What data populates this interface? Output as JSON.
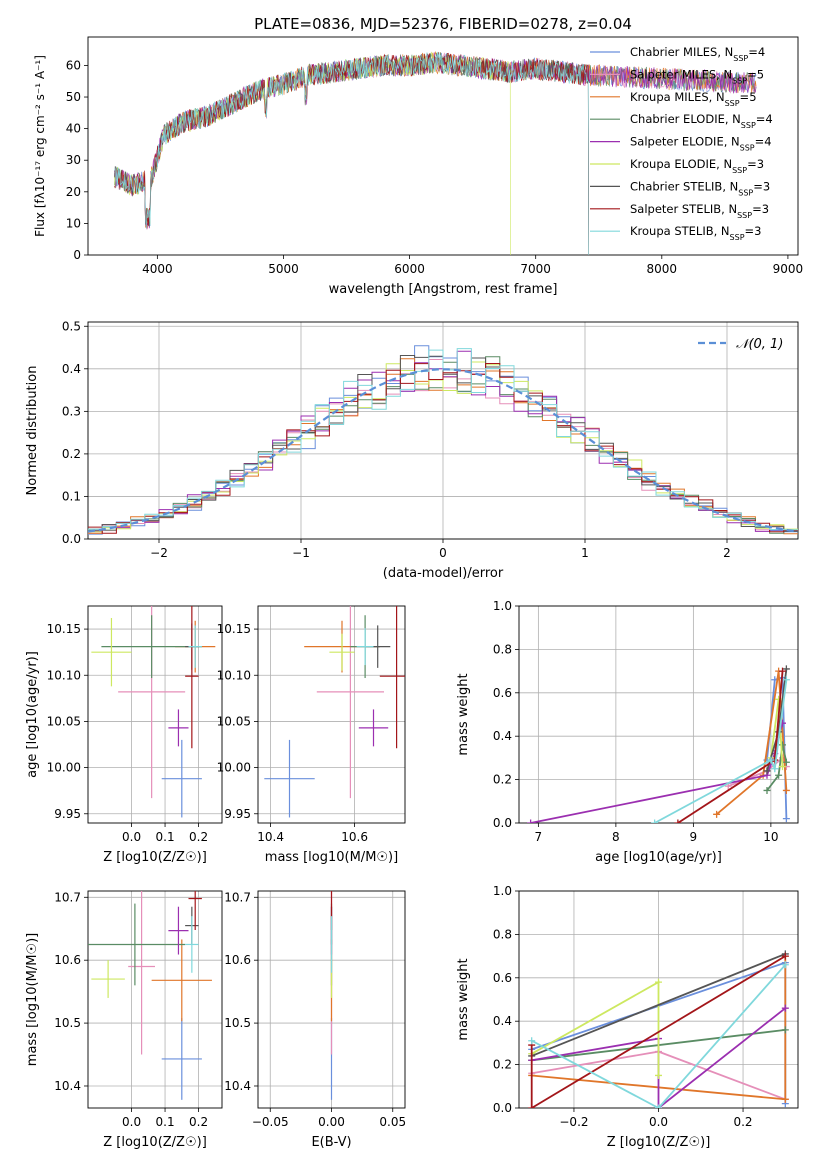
{
  "figure_title": "PLATE=0836, MJD=52376, FIBERID=0278, z=0.04",
  "series": [
    {
      "name": "Chabrier MILES",
      "nssp": "4",
      "color": "#6a8fdc"
    },
    {
      "name": "Salpeter MILES",
      "nssp": "5",
      "color": "#e58fb9"
    },
    {
      "name": "Kroupa MILES",
      "nssp": "5",
      "color": "#e0762a"
    },
    {
      "name": "Chabrier ELODIE",
      "nssp": "4",
      "color": "#5a8c64"
    },
    {
      "name": "Salpeter ELODIE",
      "nssp": "4",
      "color": "#9b2fb0"
    },
    {
      "name": "Kroupa ELODIE",
      "nssp": "3",
      "color": "#cde860"
    },
    {
      "name": "Chabrier STELIB",
      "nssp": "3",
      "color": "#555555"
    },
    {
      "name": "Salpeter STELIB",
      "nssp": "3",
      "color": "#a3161a"
    },
    {
      "name": "Kroupa STELIB",
      "nssp": "3",
      "color": "#80d8dc"
    }
  ],
  "chart_data": [
    {
      "id": "spectrum",
      "type": "line",
      "xlabel": "wavelength [Angstrom, rest frame]",
      "ylabel": "Flux [fλ10⁻¹⁷ erg cm⁻² s⁻¹ A⁻¹]",
      "xlim": [
        3450,
        9080
      ],
      "ylim": [
        0,
        69
      ],
      "xticks": [
        4000,
        5000,
        6000,
        7000,
        8000,
        9000
      ],
      "yticks": [
        0,
        10,
        20,
        30,
        40,
        50,
        60
      ],
      "legend": "right",
      "continuum_x": [
        3650,
        3800,
        3950,
        4050,
        4200,
        4400,
        4600,
        4800,
        5000,
        5200,
        5400,
        5600,
        5800,
        6000,
        6200,
        6400,
        6600,
        6800,
        7000,
        7200,
        7400
      ],
      "continuum_y": [
        25,
        22,
        24,
        38,
        42,
        44,
        48,
        52,
        54,
        57,
        58,
        59,
        60,
        60,
        61,
        60,
        59,
        58,
        59,
        58,
        57
      ],
      "red_end": {
        "Chabrier STELIB": 7420,
        "Salpeter STELIB": 7420,
        "Kroupa STELIB": 7420,
        "Kroupa ELODIE": 6800
      },
      "far_end": 8750
    },
    {
      "id": "residuals",
      "type": "bar",
      "xlabel": "(data-model)/error",
      "ylabel": "Normed distribution",
      "xlim": [
        -2.5,
        2.5
      ],
      "ylim": [
        0,
        0.51
      ],
      "xticks": [
        -2,
        -1,
        0,
        1,
        2
      ],
      "yticks": [
        0.0,
        0.1,
        0.2,
        0.3,
        0.4,
        0.5
      ],
      "grid": true,
      "reference": {
        "name": "N(0,1)",
        "mean": 0,
        "sigma": 1
      },
      "bins": 50
    },
    {
      "id": "age-vs-Z",
      "type": "scatter",
      "xlabel": "Z [log10(Z/Z☉)]",
      "ylabel": "age  [log10(age/yr)]",
      "xlim": [
        -0.13,
        0.27
      ],
      "ylim": [
        9.94,
        10.175
      ],
      "xticks": [
        0.0,
        0.1,
        0.2
      ],
      "yticks": [
        9.95,
        10.0,
        10.05,
        10.1,
        10.15
      ],
      "points": [
        {
          "s": 0,
          "x": 0.15,
          "xe": 0.06,
          "y": 9.988,
          "ye": 0.042
        },
        {
          "s": 1,
          "x": 0.06,
          "xe": 0.1,
          "y": 10.082,
          "ye": 0.115
        },
        {
          "s": 2,
          "x": 0.19,
          "xe": 0.06,
          "y": 10.131,
          "ye": 0.028
        },
        {
          "s": 3,
          "x": 0.06,
          "xe": 0.15,
          "y": 10.131,
          "ye": 0.034
        },
        {
          "s": 4,
          "x": 0.14,
          "xe": 0.03,
          "y": 10.043,
          "ye": 0.02
        },
        {
          "s": 5,
          "x": -0.06,
          "xe": 0.06,
          "y": 10.125,
          "ye": 0.037
        },
        {
          "s": 6,
          "x": 0.18,
          "xe": 0.02,
          "y": 10.131,
          "ye": 0.025
        },
        {
          "s": 7,
          "x": 0.18,
          "xe": 0.02,
          "y": 10.099,
          "ye": 0.078
        },
        {
          "s": 8,
          "x": 0.19,
          "xe": 0.02,
          "y": 10.131,
          "ye": 0.023
        }
      ]
    },
    {
      "id": "age-vs-mass",
      "type": "scatter",
      "xlabel": "mass [log10(M/M☉)]",
      "ylabel": "",
      "xlim": [
        10.37,
        10.72
      ],
      "ylim": [
        9.94,
        10.175
      ],
      "xticks": [
        10.4,
        10.6
      ],
      "yticks": [
        9.95,
        10.0,
        10.05,
        10.1,
        10.15
      ],
      "points": [
        {
          "s": 0,
          "x": 10.445,
          "xe": 0.06,
          "y": 9.988,
          "ye": 0.042
        },
        {
          "s": 1,
          "x": 10.59,
          "xe": 0.08,
          "y": 10.082,
          "ye": 0.115
        },
        {
          "s": 2,
          "x": 10.57,
          "xe": 0.09,
          "y": 10.131,
          "ye": 0.028
        },
        {
          "s": 3,
          "x": 10.625,
          "xe": 0.035,
          "y": 10.131,
          "ye": 0.034
        },
        {
          "s": 4,
          "x": 10.645,
          "xe": 0.035,
          "y": 10.043,
          "ye": 0.02
        },
        {
          "s": 5,
          "x": 10.57,
          "xe": 0.03,
          "y": 10.125,
          "ye": 0.02
        },
        {
          "s": 6,
          "x": 10.655,
          "xe": 0.03,
          "y": 10.131,
          "ye": 0.023
        },
        {
          "s": 7,
          "x": 10.7,
          "xe": 0.04,
          "y": 10.099,
          "ye": 0.078
        },
        {
          "s": 8,
          "x": 10.625,
          "xe": 0.02,
          "y": 10.131,
          "ye": 0.02
        }
      ]
    },
    {
      "id": "weight-vs-age",
      "type": "line",
      "xlabel": "age  [log10(age/yr)]",
      "ylabel": "mass weight",
      "xlim": [
        6.75,
        10.35
      ],
      "ylim": [
        0,
        1.0
      ],
      "xticks": [
        7,
        8,
        9,
        10
      ],
      "yticks": [
        0.0,
        0.2,
        0.4,
        0.6,
        0.8,
        1.0
      ],
      "series_points": [
        {
          "s": 0,
          "x": [
            9.95,
            10.05,
            10.15,
            10.2
          ],
          "y": [
            0.29,
            0.66,
            0.67,
            0.02
          ]
        },
        {
          "s": 1,
          "x": [
            9.45,
            9.95,
            10.15,
            10.2
          ],
          "y": [
            0.17,
            0.24,
            0.3,
            0.26
          ]
        },
        {
          "s": 2,
          "x": [
            9.3,
            9.9,
            10.1,
            10.2
          ],
          "y": [
            0.04,
            0.22,
            0.7,
            0.15
          ]
        },
        {
          "s": 3,
          "x": [
            9.95,
            10.1,
            10.15,
            10.2
          ],
          "y": [
            0.15,
            0.22,
            0.36,
            0.28
          ]
        },
        {
          "s": 4,
          "x": [
            6.9,
            9.95,
            10.05,
            10.15
          ],
          "y": [
            0.0,
            0.22,
            0.32,
            0.46
          ]
        },
        {
          "s": 5,
          "x": [
            10.0,
            10.1,
            10.15
          ],
          "y": [
            0.3,
            0.57,
            0.26
          ]
        },
        {
          "s": 6,
          "x": [
            9.95,
            10.1,
            10.2
          ],
          "y": [
            0.24,
            0.42,
            0.71
          ]
        },
        {
          "s": 7,
          "x": [
            8.8,
            10.05,
            10.15
          ],
          "y": [
            0.0,
            0.29,
            0.7
          ]
        },
        {
          "s": 8,
          "x": [
            8.5,
            10.0,
            10.05,
            10.2
          ],
          "y": [
            0.0,
            0.29,
            0.25,
            0.66
          ]
        }
      ]
    },
    {
      "id": "mass-vs-Z",
      "type": "scatter",
      "xlabel": "Z [log10(Z/Z☉)]",
      "ylabel": "mass [log10(M/M☉)]",
      "xlim": [
        -0.13,
        0.27
      ],
      "ylim": [
        10.365,
        10.71
      ],
      "xticks": [
        0.0,
        0.1,
        0.2
      ],
      "yticks": [
        10.4,
        10.5,
        10.6,
        10.7
      ],
      "points": [
        {
          "s": 0,
          "x": 0.15,
          "xe": 0.06,
          "y": 10.443,
          "ye": 0.065
        },
        {
          "s": 1,
          "x": 0.03,
          "xe": 0.04,
          "y": 10.59,
          "ye": 0.14
        },
        {
          "s": 2,
          "x": 0.15,
          "xe": 0.09,
          "y": 10.568,
          "ye": 0.065
        },
        {
          "s": 3,
          "x": 0.01,
          "xe": 0.15,
          "y": 10.625,
          "ye": 0.065
        },
        {
          "s": 4,
          "x": 0.14,
          "xe": 0.03,
          "y": 10.647,
          "ye": 0.038
        },
        {
          "s": 5,
          "x": -0.07,
          "xe": 0.05,
          "y": 10.57,
          "ye": 0.03
        },
        {
          "s": 6,
          "x": 0.18,
          "xe": 0.02,
          "y": 10.655,
          "ye": 0.03
        },
        {
          "s": 7,
          "x": 0.19,
          "xe": 0.02,
          "y": 10.698,
          "ye": 0.05
        },
        {
          "s": 8,
          "x": 0.18,
          "xe": 0.02,
          "y": 10.625,
          "ye": 0.045
        }
      ]
    },
    {
      "id": "mass-vs-ebv",
      "type": "scatter",
      "xlabel": "E(B-V)",
      "ylabel": "",
      "xlim": [
        -0.06,
        0.06
      ],
      "ylim": [
        10.365,
        10.71
      ],
      "xticks": [
        -0.05,
        0.0,
        0.05
      ],
      "xticklabels": [
        "−0.05",
        "0.00",
        "0.05"
      ],
      "yticks": [
        10.4,
        10.5,
        10.6,
        10.7
      ],
      "points": [
        {
          "s": 0,
          "x": 0,
          "y": 10.443,
          "ye": 0.065
        },
        {
          "s": 1,
          "x": 0,
          "y": 10.59,
          "ye": 0.14
        },
        {
          "s": 2,
          "x": 0,
          "y": 10.568,
          "ye": 0.065
        },
        {
          "s": 3,
          "x": 0,
          "y": 10.625,
          "ye": 0.065
        },
        {
          "s": 4,
          "x": 0,
          "y": 10.647,
          "ye": 0.038
        },
        {
          "s": 5,
          "x": 0,
          "y": 10.57,
          "ye": 0.03
        },
        {
          "s": 6,
          "x": 0,
          "y": 10.655,
          "ye": 0.03
        },
        {
          "s": 7,
          "x": 0,
          "y": 10.698,
          "ye": 0.05
        },
        {
          "s": 8,
          "x": 0,
          "y": 10.625,
          "ye": 0.045
        }
      ]
    },
    {
      "id": "weight-vs-Z",
      "type": "line",
      "xlabel": "Z [log10(Z/Z☉)]",
      "ylabel": "mass weight",
      "xlim": [
        -0.33,
        0.33
      ],
      "ylim": [
        0,
        1.0
      ],
      "xticks": [
        -0.2,
        0.0,
        0.2
      ],
      "xticklabels": [
        "−0.2",
        "0.0",
        "0.2"
      ],
      "yticks": [
        0.0,
        0.2,
        0.4,
        0.6,
        0.8,
        1.0
      ],
      "series_points": [
        {
          "s": 0,
          "x": [
            -0.3,
            0.3,
            0.3
          ],
          "y": [
            0.27,
            0.67,
            0.02
          ]
        },
        {
          "s": 1,
          "x": [
            -0.3,
            0.0,
            0.3
          ],
          "y": [
            0.16,
            0.26,
            0.04
          ]
        },
        {
          "s": 2,
          "x": [
            -0.3,
            0.3,
            0.3
          ],
          "y": [
            0.15,
            0.04,
            0.7
          ]
        },
        {
          "s": 3,
          "x": [
            -0.3,
            0.3
          ],
          "y": [
            0.22,
            0.36
          ]
        },
        {
          "s": 4,
          "x": [
            -0.3,
            0.0,
            0.0,
            0.3
          ],
          "y": [
            0.22,
            0.32,
            0.0,
            0.46
          ]
        },
        {
          "s": 5,
          "x": [
            -0.3,
            0.0,
            0.0
          ],
          "y": [
            0.25,
            0.58,
            0.15
          ]
        },
        {
          "s": 6,
          "x": [
            -0.3,
            0.3
          ],
          "y": [
            0.24,
            0.71
          ]
        },
        {
          "s": 7,
          "x": [
            -0.3,
            -0.3,
            0.3
          ],
          "y": [
            0.29,
            0.0,
            0.7
          ]
        },
        {
          "s": 8,
          "x": [
            -0.3,
            0.0,
            0.3
          ],
          "y": [
            0.31,
            0.0,
            0.66
          ]
        }
      ]
    }
  ]
}
